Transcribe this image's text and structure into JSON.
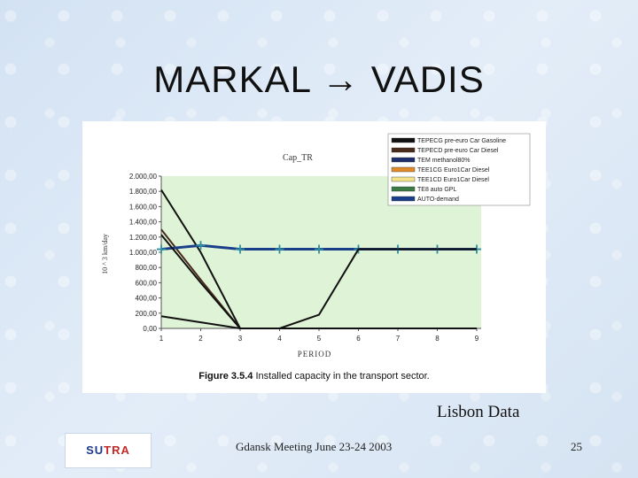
{
  "slide": {
    "title_left": "MARKAL",
    "arrow_glyph": "→",
    "title_right": "VADIS",
    "note": "Lisbon Data",
    "footer": "Gdansk Meeting June 23-24 2003",
    "page_number": "25",
    "logo_text_1": "SU",
    "logo_text_2": "TRA"
  },
  "figure": {
    "caption_bold": "Figure 3.5.4",
    "caption_rest": " Installed capacity in the transport sector."
  },
  "chart_data": {
    "type": "line",
    "title": "Cap_TR",
    "xlabel": "PERIOD",
    "ylabel": "10 ^ 3 km/day",
    "categories": [
      "1",
      "2",
      "3",
      "4",
      "5",
      "6",
      "7",
      "8",
      "9"
    ],
    "y_ticks": [
      "2.000,00",
      "1.800,00",
      "1.600,00",
      "1.400,00",
      "1.200,00",
      "1.000,00",
      "800,00",
      "600,00",
      "400,00",
      "200,00",
      "0,00"
    ],
    "ylim": [
      0,
      2000
    ],
    "grid": false,
    "plot_background": "#dff3d6",
    "legend_position": "top-right",
    "series": [
      {
        "name": "TEPECG pre-euro Car Gasoline",
        "color": "#111111",
        "values": [
          1820,
          1000,
          0,
          0,
          0,
          0,
          0,
          0,
          0
        ]
      },
      {
        "name": "TEPECD pre-euro Car Diesel",
        "color": "#4a2a1a",
        "values": [
          1300,
          640,
          0,
          0,
          0,
          0,
          0,
          0,
          0
        ]
      },
      {
        "name": "TEM methanol80%",
        "color": "#1e2f6e",
        "values": [
          null,
          null,
          null,
          null,
          null,
          null,
          null,
          null,
          null
        ]
      },
      {
        "name": "TEE1CG Euro1Car Diesel",
        "color": "#e08a2a",
        "values": [
          null,
          null,
          null,
          null,
          null,
          null,
          null,
          null,
          null
        ]
      },
      {
        "name": "TEE1CD Euro1Car Diesel",
        "color": "#f2e28a",
        "values": [
          null,
          null,
          null,
          null,
          null,
          null,
          null,
          null,
          null
        ]
      },
      {
        "name": "TE8 auto GPL",
        "color": "#3a7a44",
        "values": [
          null,
          null,
          null,
          null,
          null,
          null,
          null,
          null,
          null
        ]
      },
      {
        "name": "AUTO-demand",
        "color": "#1a3f8a",
        "marker": "cross",
        "values": [
          1040,
          1090,
          1040,
          1040,
          1040,
          1040,
          1040,
          1040,
          1040
        ]
      },
      {
        "name": "",
        "color": "#111111",
        "values": [
          1230,
          600,
          0,
          0,
          180,
          1040,
          1040,
          1040,
          1040
        ]
      },
      {
        "name": "",
        "color": "#111111",
        "values": [
          160,
          80,
          0,
          0,
          0,
          0,
          0,
          0,
          0
        ]
      }
    ]
  }
}
